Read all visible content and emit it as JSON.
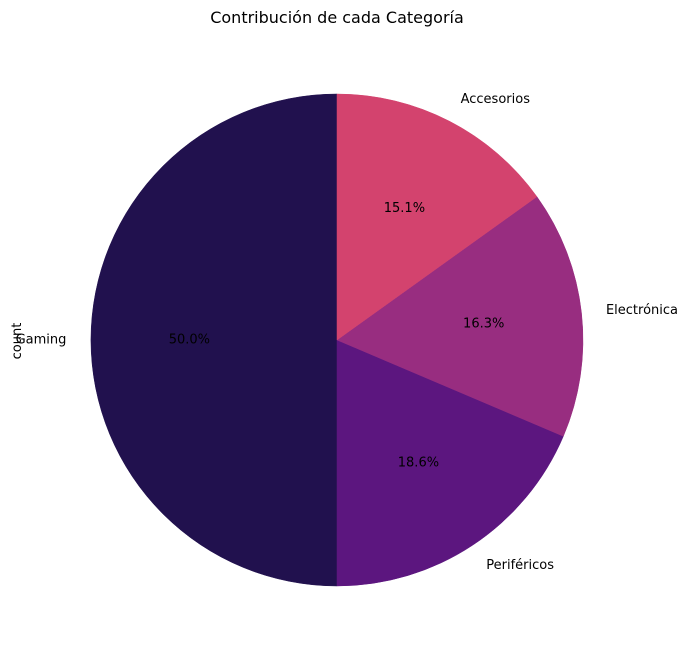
{
  "chart_data": {
    "type": "pie",
    "title": "Contribución de cada Categoría",
    "ylabel": "count",
    "start_angle_deg": 90,
    "direction": "counterclockwise",
    "slices": [
      {
        "label": "Gaming",
        "value": 50.0,
        "pct_text": "50.0%",
        "color": "#21114e"
      },
      {
        "label": "Periféricos",
        "value": 18.6,
        "pct_text": "18.6%",
        "color": "#5c167f"
      },
      {
        "label": "Electrónica",
        "value": 16.3,
        "pct_text": "16.3%",
        "color": "#982d80"
      },
      {
        "label": "Accesorios",
        "value": 15.1,
        "pct_text": "15.1%",
        "color": "#d3436e"
      }
    ]
  }
}
